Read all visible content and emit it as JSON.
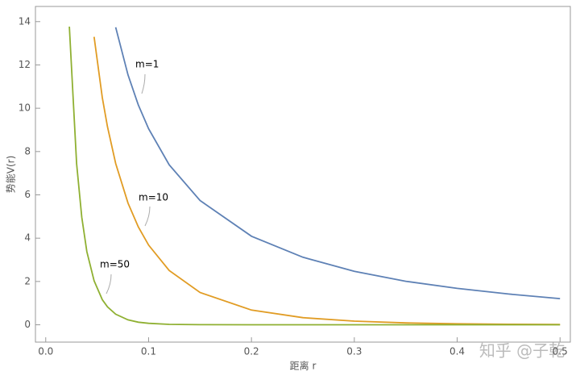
{
  "chart_data": {
    "type": "line",
    "x_label": "距离 r",
    "y_label": "势能V(r)",
    "watermark": "知乎 @子乾",
    "x": [
      0.023,
      0.03,
      0.035,
      0.04,
      0.047,
      0.055,
      0.06,
      0.068,
      0.08,
      0.09,
      0.1,
      0.12,
      0.15,
      0.2,
      0.25,
      0.3,
      0.35,
      0.4,
      0.45,
      0.5
    ],
    "series": [
      {
        "name": "m=1",
        "color": "#5e81b5",
        "values": [
          null,
          null,
          null,
          null,
          null,
          null,
          null,
          13.74,
          11.54,
          10.15,
          9.05,
          7.39,
          5.74,
          4.09,
          3.12,
          2.47,
          2.01,
          1.68,
          1.42,
          1.21
        ]
      },
      {
        "name": "m=10",
        "color": "#e19c24",
        "values": [
          null,
          null,
          null,
          null,
          13.3,
          10.49,
          9.15,
          7.45,
          5.62,
          4.52,
          3.68,
          2.51,
          1.49,
          0.68,
          0.33,
          0.17,
          0.086,
          0.046,
          0.025,
          0.013
        ]
      },
      {
        "name": "m=50",
        "color": "#8fb032",
        "values": [
          13.77,
          7.44,
          4.97,
          3.38,
          2.03,
          1.16,
          0.83,
          0.49,
          0.23,
          0.12,
          0.067,
          0.021,
          0.0037,
          0,
          0,
          0,
          0,
          0,
          0,
          0
        ]
      }
    ],
    "xlim": [
      -0.01,
      0.51
    ],
    "ylim": [
      -0.8,
      14.7
    ],
    "xticks": [
      {
        "value": 0,
        "label": "0.0"
      },
      0.1,
      0.2,
      0.3,
      0.4,
      0.5
    ],
    "yticks": [
      0,
      2,
      4,
      6,
      8,
      10,
      12,
      14
    ]
  }
}
